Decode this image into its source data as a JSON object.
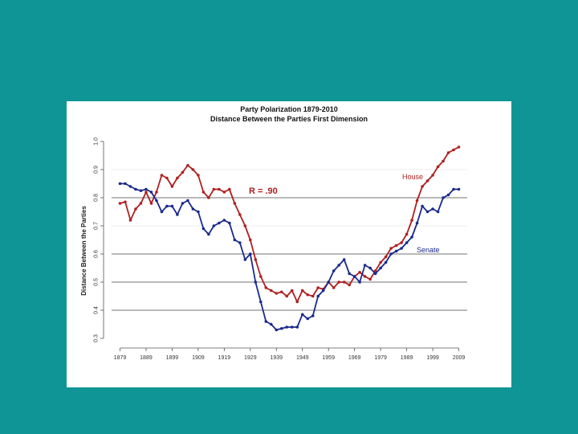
{
  "chart_data": {
    "type": "line",
    "title": "Party Polarization 1879-2010",
    "subtitle": "Distance Between the Parties First Dimension",
    "xlabel": "",
    "ylabel": "Distance Between the Parties",
    "xlim": [
      1877,
      2011
    ],
    "ylim": [
      0.3,
      1.0
    ],
    "x_ticks": [
      1879,
      1889,
      1899,
      1909,
      1919,
      1929,
      1939,
      1949,
      1959,
      1969,
      1979,
      1989,
      1999,
      2009
    ],
    "y_ticks": [
      0.3,
      0.4,
      0.5,
      0.6,
      0.7,
      0.8,
      0.9,
      1.0
    ],
    "gridlines_y": [
      0.4,
      0.5,
      0.6,
      0.8
    ],
    "annotation": "R = .90",
    "series": [
      {
        "name": "House",
        "color": "#b02020",
        "x": [
          1879,
          1881,
          1883,
          1885,
          1887,
          1889,
          1891,
          1893,
          1895,
          1897,
          1899,
          1901,
          1903,
          1905,
          1907,
          1909,
          1911,
          1913,
          1915,
          1917,
          1919,
          1921,
          1923,
          1925,
          1927,
          1929,
          1931,
          1933,
          1935,
          1937,
          1939,
          1941,
          1943,
          1945,
          1947,
          1949,
          1951,
          1953,
          1955,
          1957,
          1959,
          1961,
          1963,
          1965,
          1967,
          1969,
          1971,
          1973,
          1975,
          1977,
          1979,
          1981,
          1983,
          1985,
          1987,
          1989,
          1991,
          1993,
          1995,
          1997,
          1999,
          2001,
          2003,
          2005,
          2007,
          2009
        ],
        "values": [
          0.78,
          0.785,
          0.72,
          0.76,
          0.78,
          0.82,
          0.78,
          0.82,
          0.88,
          0.87,
          0.84,
          0.87,
          0.89,
          0.915,
          0.9,
          0.88,
          0.82,
          0.8,
          0.83,
          0.83,
          0.82,
          0.83,
          0.78,
          0.74,
          0.7,
          0.65,
          0.58,
          0.52,
          0.48,
          0.47,
          0.46,
          0.465,
          0.45,
          0.47,
          0.43,
          0.47,
          0.455,
          0.45,
          0.48,
          0.475,
          0.5,
          0.48,
          0.5,
          0.5,
          0.49,
          0.52,
          0.535,
          0.52,
          0.51,
          0.54,
          0.57,
          0.59,
          0.62,
          0.63,
          0.64,
          0.67,
          0.72,
          0.79,
          0.84,
          0.86,
          0.88,
          0.91,
          0.93,
          0.96,
          0.97,
          0.98
        ]
      },
      {
        "name": "Senate",
        "color": "#1a2a8c",
        "x": [
          1879,
          1881,
          1883,
          1885,
          1887,
          1889,
          1891,
          1893,
          1895,
          1897,
          1899,
          1901,
          1903,
          1905,
          1907,
          1909,
          1911,
          1913,
          1915,
          1917,
          1919,
          1921,
          1923,
          1925,
          1927,
          1929,
          1931,
          1933,
          1935,
          1937,
          1939,
          1941,
          1943,
          1945,
          1947,
          1949,
          1951,
          1953,
          1955,
          1957,
          1959,
          1961,
          1963,
          1965,
          1967,
          1969,
          1971,
          1973,
          1975,
          1977,
          1979,
          1981,
          1983,
          1985,
          1987,
          1989,
          1991,
          1993,
          1995,
          1997,
          1999,
          2001,
          2003,
          2005,
          2007,
          2009
        ],
        "values": [
          0.85,
          0.85,
          0.84,
          0.83,
          0.825,
          0.83,
          0.82,
          0.79,
          0.75,
          0.77,
          0.77,
          0.74,
          0.78,
          0.79,
          0.76,
          0.75,
          0.69,
          0.67,
          0.7,
          0.71,
          0.72,
          0.71,
          0.65,
          0.64,
          0.58,
          0.6,
          0.5,
          0.43,
          0.36,
          0.35,
          0.33,
          0.335,
          0.34,
          0.34,
          0.34,
          0.385,
          0.37,
          0.38,
          0.45,
          0.47,
          0.5,
          0.54,
          0.56,
          0.58,
          0.53,
          0.52,
          0.5,
          0.56,
          0.55,
          0.53,
          0.55,
          0.57,
          0.6,
          0.61,
          0.62,
          0.64,
          0.66,
          0.71,
          0.77,
          0.75,
          0.76,
          0.75,
          0.8,
          0.81,
          0.83,
          0.83
        ]
      }
    ]
  }
}
